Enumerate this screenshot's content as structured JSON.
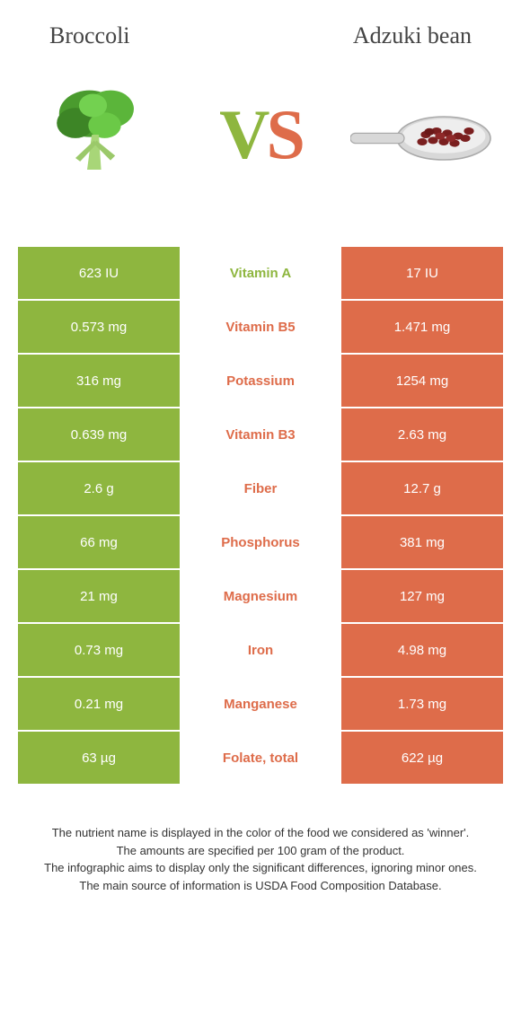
{
  "header": {
    "left": "Broccoli",
    "right": "Adzuki bean"
  },
  "vs": {
    "v": "V",
    "s": "S"
  },
  "colors": {
    "green": "#8eb63f",
    "orange": "#de6c4a"
  },
  "rows": [
    {
      "left": "623 IU",
      "mid": "Vitamin A",
      "right": "17 IU",
      "winner": "left"
    },
    {
      "left": "0.573 mg",
      "mid": "Vitamin B5",
      "right": "1.471 mg",
      "winner": "right"
    },
    {
      "left": "316 mg",
      "mid": "Potassium",
      "right": "1254 mg",
      "winner": "right"
    },
    {
      "left": "0.639 mg",
      "mid": "Vitamin B3",
      "right": "2.63 mg",
      "winner": "right"
    },
    {
      "left": "2.6 g",
      "mid": "Fiber",
      "right": "12.7 g",
      "winner": "right"
    },
    {
      "left": "66 mg",
      "mid": "Phosphorus",
      "right": "381 mg",
      "winner": "right"
    },
    {
      "left": "21 mg",
      "mid": "Magnesium",
      "right": "127 mg",
      "winner": "right"
    },
    {
      "left": "0.73 mg",
      "mid": "Iron",
      "right": "4.98 mg",
      "winner": "right"
    },
    {
      "left": "0.21 mg",
      "mid": "Manganese",
      "right": "1.73 mg",
      "winner": "right"
    },
    {
      "left": "63 µg",
      "mid": "Folate, total",
      "right": "622 µg",
      "winner": "right"
    }
  ],
  "footer": {
    "l1": "The nutrient name is displayed in the color of the food we considered as 'winner'.",
    "l2": "The amounts are specified per 100 gram of the product.",
    "l3": "The infographic aims to display only the significant differences, ignoring minor ones.",
    "l4": "The main source of information is USDA Food Composition Database."
  }
}
